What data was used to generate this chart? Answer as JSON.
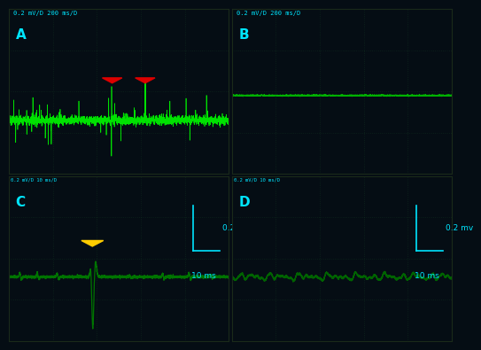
{
  "bg_color": "#050d14",
  "panel_bg": "#050d14",
  "grid_dot_color": "#1a4a2a",
  "signal_color_A": "#00ee00",
  "signal_color_B": "#00bb00",
  "signal_color_C": "#007700",
  "signal_color_D": "#006600",
  "cyan_color": "#00e5ff",
  "red_arrow_color": "#dd0000",
  "yellow_arrow_color": "#ffcc00",
  "divider_color": "#111111",
  "label_A": "A",
  "label_B": "B",
  "label_C": "C",
  "label_D": "D",
  "top_label": "0.2 mV/D 200 ms/D",
  "bottom_label_CD": "0.2 mV/D 10 ms/D",
  "scale_mv": "0.2 mv",
  "scale_ms": "10 ms",
  "panel_A_signal_ylevel": -0.35,
  "panel_B_signal_ylevel": -0.05,
  "grid_nx": 5,
  "grid_ny": 4
}
